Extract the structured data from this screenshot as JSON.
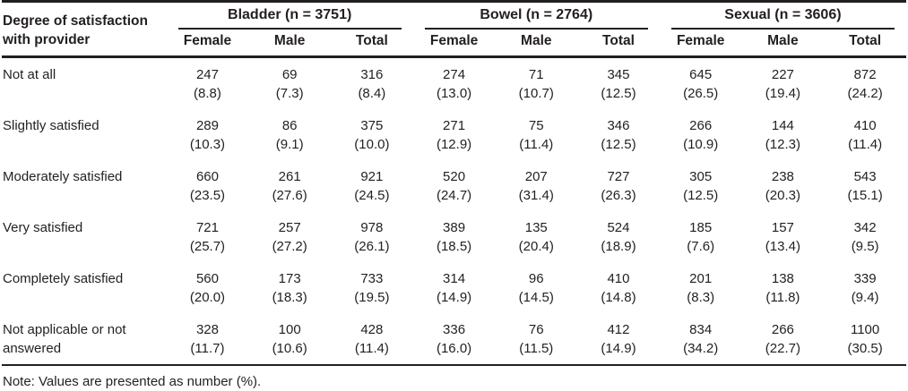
{
  "colors": {
    "text": "#231f20",
    "rule": "#231f20",
    "background": "#ffffff"
  },
  "table": {
    "row_header": {
      "line1": "Degree of satisfaction",
      "line2": "with provider"
    },
    "groups": [
      {
        "label": "Bladder (n = 3751)",
        "columns": [
          "Female",
          "Male",
          "Total"
        ]
      },
      {
        "label": "Bowel (n = 2764)",
        "columns": [
          "Female",
          "Male",
          "Total"
        ]
      },
      {
        "label": "Sexual (n = 3606)",
        "columns": [
          "Female",
          "Male",
          "Total"
        ]
      }
    ],
    "rows": [
      {
        "label": "Not at all",
        "cells": [
          [
            "247",
            "(8.8)"
          ],
          [
            "69",
            "(7.3)"
          ],
          [
            "316",
            "(8.4)"
          ],
          [
            "274",
            "(13.0)"
          ],
          [
            "71",
            "(10.7)"
          ],
          [
            "345",
            "(12.5)"
          ],
          [
            "645",
            "(26.5)"
          ],
          [
            "227",
            "(19.4)"
          ],
          [
            "872",
            "(24.2)"
          ]
        ]
      },
      {
        "label": "Slightly satisfied",
        "cells": [
          [
            "289",
            "(10.3)"
          ],
          [
            "86",
            "(9.1)"
          ],
          [
            "375",
            "(10.0)"
          ],
          [
            "271",
            "(12.9)"
          ],
          [
            "75",
            "(11.4)"
          ],
          [
            "346",
            "(12.5)"
          ],
          [
            "266",
            "(10.9)"
          ],
          [
            "144",
            "(12.3)"
          ],
          [
            "410",
            "(11.4)"
          ]
        ]
      },
      {
        "label": "Moderately satisfied",
        "cells": [
          [
            "660",
            "(23.5)"
          ],
          [
            "261",
            "(27.6)"
          ],
          [
            "921",
            "(24.5)"
          ],
          [
            "520",
            "(24.7)"
          ],
          [
            "207",
            "(31.4)"
          ],
          [
            "727",
            "(26.3)"
          ],
          [
            "305",
            "(12.5)"
          ],
          [
            "238",
            "(20.3)"
          ],
          [
            "543",
            "(15.1)"
          ]
        ]
      },
      {
        "label": "Very satisfied",
        "cells": [
          [
            "721",
            "(25.7)"
          ],
          [
            "257",
            "(27.2)"
          ],
          [
            "978",
            "(26.1)"
          ],
          [
            "389",
            "(18.5)"
          ],
          [
            "135",
            "(20.4)"
          ],
          [
            "524",
            "(18.9)"
          ],
          [
            "185",
            "(7.6)"
          ],
          [
            "157",
            "(13.4)"
          ],
          [
            "342",
            "(9.5)"
          ]
        ]
      },
      {
        "label": "Completely satisfied",
        "cells": [
          [
            "560",
            "(20.0)"
          ],
          [
            "173",
            "(18.3)"
          ],
          [
            "733",
            "(19.5)"
          ],
          [
            "314",
            "(14.9)"
          ],
          [
            "96",
            "(14.5)"
          ],
          [
            "410",
            "(14.8)"
          ],
          [
            "201",
            "(8.3)"
          ],
          [
            "138",
            "(11.8)"
          ],
          [
            "339",
            "(9.4)"
          ]
        ]
      },
      {
        "label": "Not applicable or not answered",
        "cells": [
          [
            "328",
            "(11.7)"
          ],
          [
            "100",
            "(10.6)"
          ],
          [
            "428",
            "(11.4)"
          ],
          [
            "336",
            "(16.0)"
          ],
          [
            "76",
            "(11.5)"
          ],
          [
            "412",
            "(14.9)"
          ],
          [
            "834",
            "(34.2)"
          ],
          [
            "266",
            "(22.7)"
          ],
          [
            "1100",
            "(30.5)"
          ]
        ]
      }
    ],
    "note": "Note: Values are presented as number (%)."
  }
}
